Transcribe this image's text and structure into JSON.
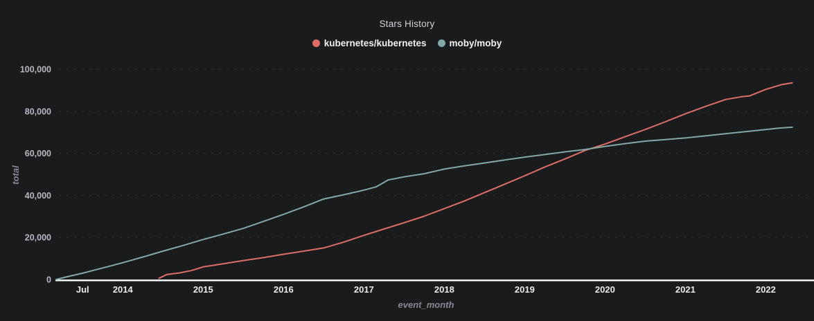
{
  "page": {
    "title": "Stars History"
  },
  "colors": {
    "background": "#1a1b1d",
    "axis_line": "#f2f3f4",
    "grid": "#2e2f32",
    "title_text": "#cfd2d6",
    "legend_text": "#f0f1f2",
    "tick_text_x": "#e9eaec",
    "tick_text_y": "#b5b8bf",
    "axis_title_text": "#85888e",
    "kubernetes_line": "#dd6e66",
    "moby_line": "#82a8a8"
  },
  "chart_data": {
    "type": "line",
    "title": "Stars History",
    "xlabel": "event_month",
    "ylabel": "total",
    "x_unit": "calendar time (decimal years)",
    "x_range": [
      2013.17,
      2022.6
    ],
    "y_range": [
      0,
      100000
    ],
    "grid": "horizontal dashed gridlines only",
    "legend_position": "top-center",
    "x_ticks": [
      {
        "t": 2013.5,
        "label": "Jul"
      },
      {
        "t": 2014,
        "label": "2014"
      },
      {
        "t": 2015,
        "label": "2015"
      },
      {
        "t": 2016,
        "label": "2016"
      },
      {
        "t": 2017,
        "label": "2017"
      },
      {
        "t": 2018,
        "label": "2018"
      },
      {
        "t": 2019,
        "label": "2019"
      },
      {
        "t": 2020,
        "label": "2020"
      },
      {
        "t": 2021,
        "label": "2021"
      },
      {
        "t": 2022,
        "label": "2022"
      }
    ],
    "y_ticks": [
      {
        "value": 0,
        "label": "0"
      },
      {
        "value": 20000,
        "label": "20,000"
      },
      {
        "value": 40000,
        "label": "40,000"
      },
      {
        "value": 60000,
        "label": "60,000"
      },
      {
        "value": 80000,
        "label": "80,000"
      },
      {
        "value": 100000,
        "label": "100,000"
      }
    ],
    "series": [
      {
        "name": "kubernetes/kubernetes",
        "color": "#dd6e66",
        "points": [
          [
            2014.45,
            600
          ],
          [
            2014.55,
            2400
          ],
          [
            2014.7,
            3100
          ],
          [
            2014.85,
            4200
          ],
          [
            2015.0,
            6000
          ],
          [
            2015.25,
            7500
          ],
          [
            2015.5,
            9000
          ],
          [
            2015.75,
            10400
          ],
          [
            2016.0,
            12000
          ],
          [
            2016.25,
            13500
          ],
          [
            2016.5,
            15000
          ],
          [
            2016.75,
            17800
          ],
          [
            2017.0,
            21000
          ],
          [
            2017.25,
            24000
          ],
          [
            2017.5,
            27000
          ],
          [
            2017.75,
            30100
          ],
          [
            2018.0,
            33700
          ],
          [
            2018.25,
            37300
          ],
          [
            2018.5,
            41300
          ],
          [
            2018.75,
            45300
          ],
          [
            2019.0,
            49300
          ],
          [
            2019.25,
            53500
          ],
          [
            2019.5,
            57300
          ],
          [
            2019.75,
            61300
          ],
          [
            2020.0,
            64400
          ],
          [
            2020.25,
            67900
          ],
          [
            2020.5,
            71300
          ],
          [
            2020.75,
            75000
          ],
          [
            2021.0,
            78800
          ],
          [
            2021.25,
            82300
          ],
          [
            2021.5,
            85600
          ],
          [
            2021.7,
            86900
          ],
          [
            2021.8,
            87300
          ],
          [
            2022.0,
            90400
          ],
          [
            2022.2,
            92700
          ],
          [
            2022.33,
            93500
          ]
        ]
      },
      {
        "name": "moby/moby",
        "color": "#82a8a8",
        "points": [
          [
            2013.17,
            0
          ],
          [
            2013.33,
            1500
          ],
          [
            2013.5,
            3000
          ],
          [
            2013.75,
            5500
          ],
          [
            2014.0,
            8000
          ],
          [
            2014.25,
            10700
          ],
          [
            2014.5,
            13500
          ],
          [
            2014.75,
            16200
          ],
          [
            2015.0,
            19000
          ],
          [
            2015.25,
            21600
          ],
          [
            2015.5,
            24300
          ],
          [
            2015.75,
            27600
          ],
          [
            2016.0,
            31000
          ],
          [
            2016.25,
            34500
          ],
          [
            2016.5,
            38300
          ],
          [
            2016.75,
            40300
          ],
          [
            2017.0,
            42500
          ],
          [
            2017.15,
            44000
          ],
          [
            2017.3,
            47300
          ],
          [
            2017.5,
            48800
          ],
          [
            2017.75,
            50300
          ],
          [
            2018.0,
            52500
          ],
          [
            2018.25,
            54000
          ],
          [
            2018.5,
            55400
          ],
          [
            2018.75,
            56800
          ],
          [
            2019.0,
            58200
          ],
          [
            2019.25,
            59400
          ],
          [
            2019.5,
            60700
          ],
          [
            2019.75,
            61800
          ],
          [
            2020.0,
            63300
          ],
          [
            2020.25,
            64600
          ],
          [
            2020.5,
            65800
          ],
          [
            2020.75,
            66500
          ],
          [
            2021.0,
            67300
          ],
          [
            2021.25,
            68300
          ],
          [
            2021.5,
            69300
          ],
          [
            2021.75,
            70300
          ],
          [
            2022.0,
            71300
          ],
          [
            2022.17,
            72000
          ],
          [
            2022.33,
            72400
          ]
        ]
      }
    ]
  }
}
